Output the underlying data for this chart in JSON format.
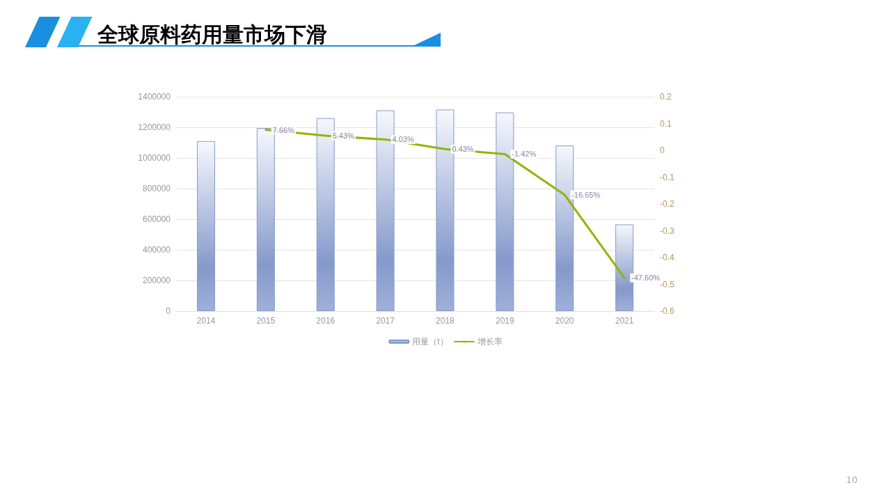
{
  "chart_data": {
    "type": "bar",
    "title": "全球原料药用量市场下滑",
    "categories": [
      "2014",
      "2015",
      "2016",
      "2017",
      "2018",
      "2019",
      "2020",
      "2021"
    ],
    "series": [
      {
        "name": "用量（t）",
        "color": "#8599cb",
        "values": [
          1110000,
          1195000,
          1260000,
          1311000,
          1316000,
          1297000,
          1081000,
          566000
        ]
      },
      {
        "name": "增长率",
        "type": "line",
        "axis": "y2",
        "color": "#92b400",
        "values": [
          null,
          0.0766,
          0.0543,
          0.0403,
          0.0043,
          -0.0142,
          -0.1665,
          -0.476
        ],
        "value_labels": [
          null,
          "7.66%",
          "5.43%",
          "4.03%",
          "0.43%",
          "-1.42%",
          "-16.65%",
          "-47.60%"
        ]
      }
    ],
    "ylim": [
      0,
      1400000
    ],
    "yticks": [
      0,
      200000,
      400000,
      600000,
      800000,
      1000000,
      1200000,
      1400000
    ],
    "y2lim": [
      -0.6,
      0.2
    ],
    "y2ticks": [
      -0.6,
      -0.5,
      -0.4,
      -0.3,
      -0.2,
      -0.1,
      0,
      0.1,
      0.2
    ],
    "grid": "y",
    "legend": "bottom",
    "marker": "none",
    "line_style": "solid",
    "annotations": [
      "10"
    ]
  }
}
